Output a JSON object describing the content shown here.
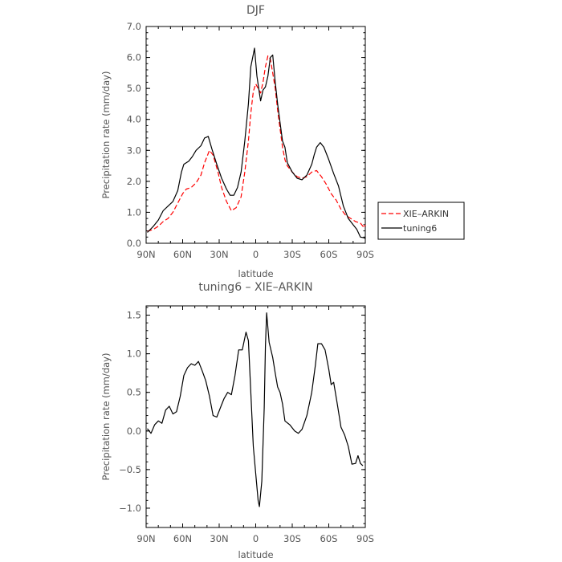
{
  "chart_data": [
    {
      "type": "line",
      "title": "DJF",
      "xlabel": "latitude",
      "ylabel": "Precipitation rate (mm/day)",
      "xlim": [
        90,
        -90
      ],
      "ylim": [
        0,
        7
      ],
      "xticks": [
        90,
        60,
        30,
        0,
        -30,
        -60,
        -90
      ],
      "xtick_labels": [
        "90N",
        "60N",
        "30N",
        "0",
        "30S",
        "60S",
        "90S"
      ],
      "yticks": [
        0,
        1,
        2,
        3,
        4,
        5,
        6,
        7
      ],
      "ytick_labels": [
        "0.0",
        "1.0",
        "2.0",
        "3.0",
        "4.0",
        "5.0",
        "6.0",
        "7.0"
      ],
      "legend": "right",
      "series": [
        {
          "name": "XIE–ARKIN",
          "color": "#ff0000",
          "style": "dashed",
          "points": [
            [
              89,
              0.38
            ],
            [
              84,
              0.45
            ],
            [
              80,
              0.55
            ],
            [
              76,
              0.7
            ],
            [
              72,
              0.8
            ],
            [
              68,
              1.0
            ],
            [
              64,
              1.3
            ],
            [
              60,
              1.6
            ],
            [
              57,
              1.75
            ],
            [
              53,
              1.8
            ],
            [
              49,
              1.95
            ],
            [
              45,
              2.2
            ],
            [
              42,
              2.6
            ],
            [
              38,
              3.0
            ],
            [
              35,
              2.85
            ],
            [
              31,
              2.3
            ],
            [
              28,
              1.8
            ],
            [
              24,
              1.35
            ],
            [
              20,
              1.05
            ],
            [
              16,
              1.15
            ],
            [
              12,
              1.5
            ],
            [
              9,
              2.3
            ],
            [
              6,
              3.3
            ],
            [
              4,
              4.2
            ],
            [
              2,
              4.9
            ],
            [
              0,
              5.15
            ],
            [
              -2,
              5.0
            ],
            [
              -4,
              4.85
            ],
            [
              -6,
              5.2
            ],
            [
              -8,
              5.7
            ],
            [
              -10,
              6.05
            ],
            [
              -12,
              5.95
            ],
            [
              -14,
              5.5
            ],
            [
              -16,
              5.0
            ],
            [
              -18,
              4.3
            ],
            [
              -20,
              3.7
            ],
            [
              -22,
              3.1
            ],
            [
              -24,
              2.7
            ],
            [
              -26,
              2.5
            ],
            [
              -30,
              2.3
            ],
            [
              -34,
              2.15
            ],
            [
              -38,
              2.1
            ],
            [
              -42,
              2.15
            ],
            [
              -46,
              2.3
            ],
            [
              -50,
              2.35
            ],
            [
              -54,
              2.15
            ],
            [
              -58,
              1.9
            ],
            [
              -62,
              1.6
            ],
            [
              -66,
              1.4
            ],
            [
              -70,
              1.1
            ],
            [
              -74,
              0.9
            ],
            [
              -78,
              0.8
            ],
            [
              -82,
              0.7
            ],
            [
              -86,
              0.65
            ],
            [
              -89,
              0.5
            ],
            [
              -90,
              0.6
            ]
          ]
        },
        {
          "name": "tuning6",
          "color": "#000000",
          "style": "solid",
          "points": [
            [
              89,
              0.35
            ],
            [
              84,
              0.55
            ],
            [
              80,
              0.75
            ],
            [
              76,
              1.05
            ],
            [
              72,
              1.2
            ],
            [
              68,
              1.35
            ],
            [
              64,
              1.7
            ],
            [
              61,
              2.3
            ],
            [
              59,
              2.55
            ],
            [
              55,
              2.65
            ],
            [
              52,
              2.8
            ],
            [
              49,
              3.0
            ],
            [
              45,
              3.15
            ],
            [
              42,
              3.4
            ],
            [
              39,
              3.45
            ],
            [
              36,
              3.05
            ],
            [
              32,
              2.55
            ],
            [
              28,
              2.1
            ],
            [
              24,
              1.75
            ],
            [
              21,
              1.55
            ],
            [
              18,
              1.55
            ],
            [
              15,
              1.8
            ],
            [
              12,
              2.3
            ],
            [
              9,
              3.3
            ],
            [
              6,
              4.5
            ],
            [
              4,
              5.7
            ],
            [
              2,
              6.1
            ],
            [
              1,
              6.3
            ],
            [
              -1,
              5.4
            ],
            [
              -3,
              4.85
            ],
            [
              -4,
              4.6
            ],
            [
              -6,
              4.95
            ],
            [
              -8,
              5.05
            ],
            [
              -10,
              5.4
            ],
            [
              -12,
              6.0
            ],
            [
              -14,
              6.08
            ],
            [
              -16,
              5.2
            ],
            [
              -18,
              4.5
            ],
            [
              -20,
              3.9
            ],
            [
              -22,
              3.3
            ],
            [
              -24,
              3.1
            ],
            [
              -26,
              2.6
            ],
            [
              -30,
              2.3
            ],
            [
              -34,
              2.1
            ],
            [
              -38,
              2.05
            ],
            [
              -42,
              2.2
            ],
            [
              -46,
              2.55
            ],
            [
              -48,
              2.85
            ],
            [
              -50,
              3.1
            ],
            [
              -53,
              3.25
            ],
            [
              -56,
              3.1
            ],
            [
              -60,
              2.7
            ],
            [
              -64,
              2.25
            ],
            [
              -68,
              1.85
            ],
            [
              -72,
              1.2
            ],
            [
              -76,
              0.8
            ],
            [
              -80,
              0.6
            ],
            [
              -83,
              0.45
            ],
            [
              -86,
              0.2
            ],
            [
              -89,
              0.18
            ],
            [
              -90,
              0.15
            ]
          ]
        }
      ]
    },
    {
      "type": "line",
      "title": "tuning6 – XIE–ARKIN",
      "xlabel": "latitude",
      "ylabel": "Precipitation rate (mm/day)",
      "xlim": [
        90,
        -90
      ],
      "ylim": [
        -1.25,
        1.62
      ],
      "xticks": [
        90,
        60,
        30,
        0,
        -30,
        -60,
        -90
      ],
      "xtick_labels": [
        "90N",
        "60N",
        "30N",
        "0",
        "30S",
        "60S",
        "90S"
      ],
      "yticks": [
        -1.0,
        -0.5,
        0.0,
        0.5,
        1.0,
        1.5
      ],
      "ytick_labels": [
        "−1.0",
        "−0.5",
        "0.0",
        "0.5",
        "1.0",
        "1.5"
      ],
      "series": [
        {
          "color": "#000000",
          "style": "solid",
          "points": [
            [
              89,
              0.03
            ],
            [
              86,
              -0.03
            ],
            [
              83,
              0.08
            ],
            [
              80,
              0.13
            ],
            [
              77,
              0.1
            ],
            [
              74,
              0.27
            ],
            [
              71,
              0.32
            ],
            [
              68,
              0.22
            ],
            [
              65,
              0.25
            ],
            [
              62,
              0.45
            ],
            [
              59,
              0.72
            ],
            [
              56,
              0.82
            ],
            [
              53,
              0.87
            ],
            [
              50,
              0.85
            ],
            [
              47,
              0.9
            ],
            [
              44,
              0.78
            ],
            [
              41,
              0.65
            ],
            [
              38,
              0.45
            ],
            [
              35,
              0.2
            ],
            [
              32,
              0.18
            ],
            [
              29,
              0.3
            ],
            [
              26,
              0.42
            ],
            [
              23,
              0.5
            ],
            [
              20,
              0.47
            ],
            [
              17,
              0.72
            ],
            [
              14,
              1.05
            ],
            [
              11,
              1.05
            ],
            [
              8,
              1.28
            ],
            [
              6,
              1.17
            ],
            [
              4,
              0.5
            ],
            [
              2,
              -0.2
            ],
            [
              0,
              -0.55
            ],
            [
              -2,
              -0.9
            ],
            [
              -3,
              -0.98
            ],
            [
              -5,
              -0.65
            ],
            [
              -7,
              0.3
            ],
            [
              -8,
              1.1
            ],
            [
              -9,
              1.53
            ],
            [
              -11,
              1.15
            ],
            [
              -14,
              0.95
            ],
            [
              -16,
              0.75
            ],
            [
              -18,
              0.57
            ],
            [
              -20,
              0.5
            ],
            [
              -22,
              0.35
            ],
            [
              -24,
              0.13
            ],
            [
              -28,
              0.08
            ],
            [
              -32,
              0.0
            ],
            [
              -35,
              -0.03
            ],
            [
              -38,
              0.02
            ],
            [
              -42,
              0.2
            ],
            [
              -46,
              0.5
            ],
            [
              -49,
              0.85
            ],
            [
              -51,
              1.13
            ],
            [
              -54,
              1.13
            ],
            [
              -57,
              1.05
            ],
            [
              -60,
              0.8
            ],
            [
              -62,
              0.6
            ],
            [
              -64,
              0.63
            ],
            [
              -67,
              0.35
            ],
            [
              -70,
              0.05
            ],
            [
              -73,
              -0.05
            ],
            [
              -76,
              -0.2
            ],
            [
              -79,
              -0.43
            ],
            [
              -82,
              -0.42
            ],
            [
              -84,
              -0.32
            ],
            [
              -86,
              -0.42
            ],
            [
              -88,
              -0.45
            ]
          ]
        }
      ]
    }
  ]
}
